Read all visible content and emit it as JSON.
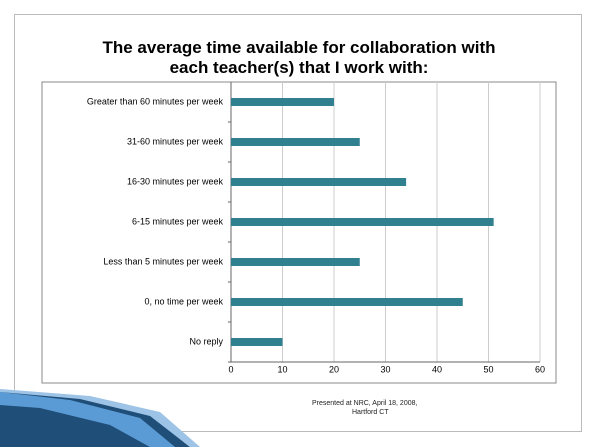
{
  "chart_data": {
    "type": "bar",
    "orientation": "horizontal",
    "title": "The average time available for collaboration with each teacher(s) that I work with:",
    "categories": [
      "Greater than 60 minutes per week",
      "31-60 minutes per week",
      "16-30 minutes per week",
      "6-15 minutes per week",
      "Less than 5 minutes per week",
      "0, no time per week",
      "No reply"
    ],
    "values": [
      20,
      25,
      34,
      51,
      25,
      45,
      10
    ],
    "color": "#31808f",
    "xlim": [
      0,
      60
    ],
    "xticks": [
      0,
      10,
      20,
      30,
      40,
      50,
      60
    ],
    "grid": true
  },
  "footer": [
    "Presented at NRC, April 18, 2008,",
    "Hartford CT"
  ]
}
